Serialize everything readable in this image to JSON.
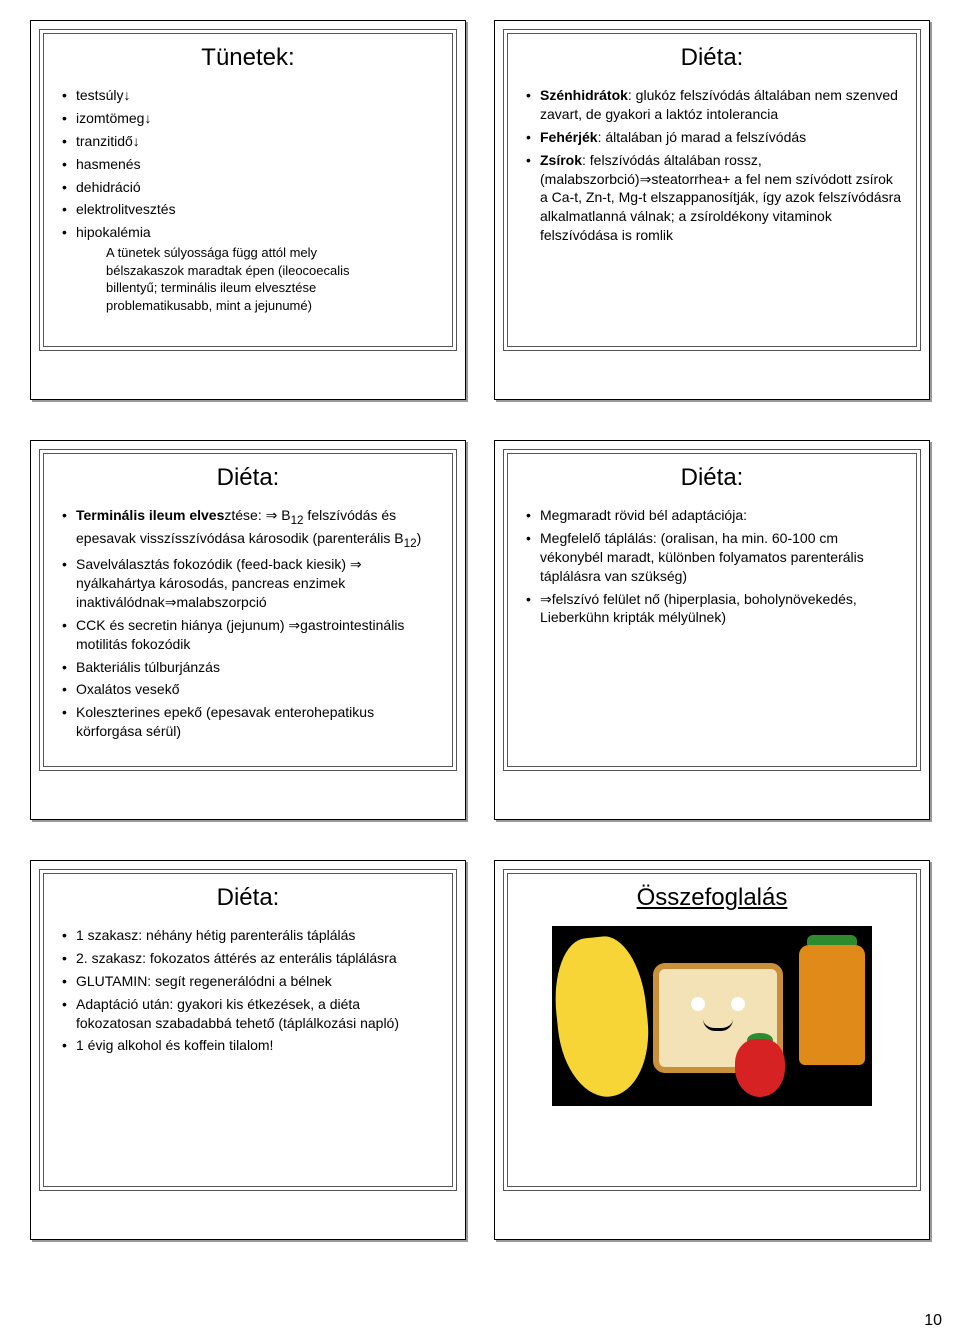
{
  "page_number": "10",
  "slides": [
    {
      "title": "Tünetek:",
      "items": [
        {
          "text": "testsúly↓"
        },
        {
          "text": "izomtömeg↓"
        },
        {
          "text": "tranzitidő↓"
        },
        {
          "text": "hasmenés"
        },
        {
          "text": "dehidráció"
        },
        {
          "text": "elektrolitvesztés"
        },
        {
          "text": "hipokalémia",
          "sub": [
            "A tünetek súlyossága függ attól mely",
            "bélszakaszok maradtak épen (ileocoecalis",
            "billentyű; terminális ileum elvesztése",
            "problematikusabb, mint a jejunumé)"
          ]
        }
      ]
    },
    {
      "title": "Diéta:",
      "items": [
        {
          "html": "<b>Szénhidrátok</b>: glukóz felszívódás általában nem szenved zavart, de gyakori a laktóz intolerancia"
        },
        {
          "html": "<b>Fehérjék</b>: általában jó marad a felszívódás"
        },
        {
          "html": "<b>Zsírok</b>: felszívódás általában rossz, (malabszorbció)⇒steatorrhea+ a fel nem szívódott zsírok a Ca-t, Zn-t, Mg-t elszappanosítják, így azok felszívódásra alkalmatlanná válnak; a zsíroldékony vitaminok felszívódása is romlik"
        }
      ]
    },
    {
      "title": "Diéta:",
      "items": [
        {
          "html": "<b>Terminális ileum elves</b>ztése: ⇒ B<sub>12</sub> felszívódás és epesavak visszísszívódása károsodik (parenterális B<sub>12</sub>)"
        },
        {
          "text": "Savelválasztás fokozódik (feed-back kiesik) ⇒ nyálkahártya károsodás, pancreas enzimek inaktiválódnak⇒malabszorpció"
        },
        {
          "text": "CCK és secretin hiánya (jejunum) ⇒gastrointestinális motilitás fokozódik"
        },
        {
          "text": "Bakteriális túlburjánzás"
        },
        {
          "text": "Oxalátos vesekő"
        },
        {
          "text": "Koleszterines epekő (epesavak enterohepatikus körforgása sérül)"
        }
      ]
    },
    {
      "title": "Diéta:",
      "big": true,
      "items": [
        {
          "text": "Megmaradt rövid bél adaptációja:"
        },
        {
          "text": "Megfelelő táplálás: (oralisan, ha min. 60-100 cm vékonybél maradt, különben folyamatos parenterális táplálásra van szükség)"
        },
        {
          "text": "⇒felszívó felület nő (hiperplasia, boholynövekedés, Lieberkühn kripták mélyülnek)"
        }
      ]
    },
    {
      "title": "Diéta:",
      "big": true,
      "items": [
        {
          "text": "1 szakasz: néhány hétig parenterális táplálás"
        },
        {
          "text": "2. szakasz: fokozatos áttérés az enterális táplálásra"
        },
        {
          "text": "GLUTAMIN: segít regenerálódni a bélnek"
        },
        {
          "text": "Adaptáció után: gyakori kis étkezések, a diéta fokozatosan szabadabbá tehető (táplálkozási napló)"
        },
        {
          "text": "1 évig alkohol és koffein tilalom!"
        }
      ]
    },
    {
      "title": "Összefoglalás",
      "image": true
    }
  ]
}
